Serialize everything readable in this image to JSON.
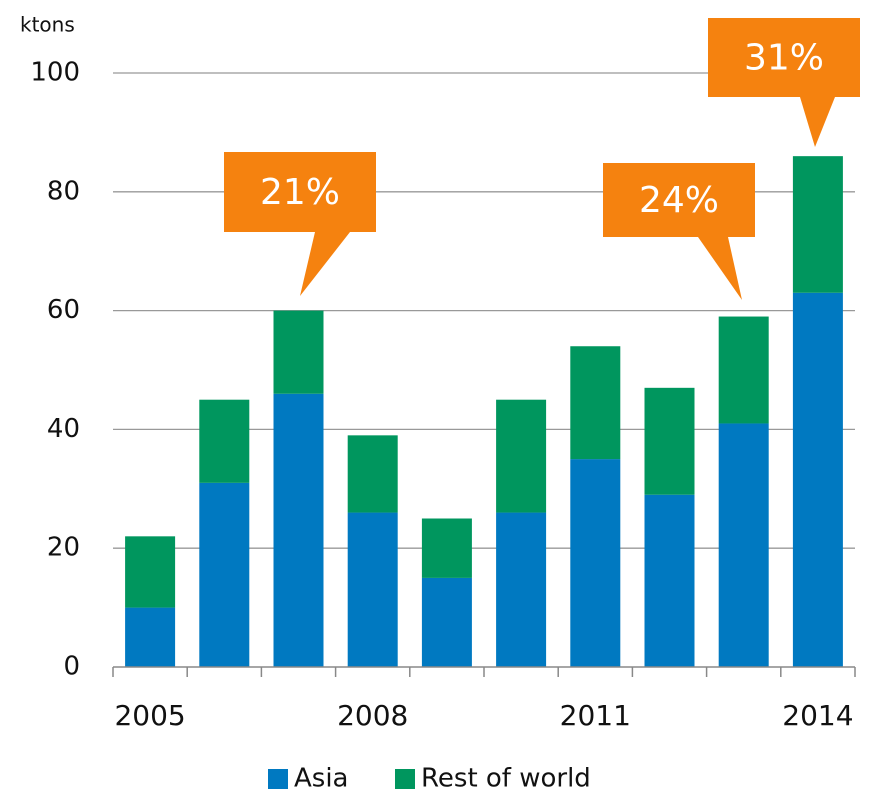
{
  "chart_data": {
    "type": "bar",
    "stacked": true,
    "y_axis_label": "ktons",
    "categories": [
      "2005",
      null,
      null,
      "2008",
      null,
      null,
      "2011",
      null,
      null,
      "2014"
    ],
    "series": [
      {
        "name": "Asia",
        "color": "#0079c1",
        "values": [
          10,
          31,
          46,
          26,
          15,
          26,
          35,
          29,
          41,
          63
        ]
      },
      {
        "name": "Rest of world",
        "color": "#00965e",
        "values": [
          12,
          14,
          14,
          13,
          10,
          19,
          19,
          18,
          18,
          23
        ]
      }
    ],
    "ylim": [
      0,
      100
    ],
    "yticks": [
      0,
      20,
      40,
      60,
      80,
      100
    ],
    "grid": true,
    "legend": "bottom",
    "annotations": [
      "21%",
      "24%",
      "31%"
    ],
    "annotation_color": "#f5820f"
  }
}
